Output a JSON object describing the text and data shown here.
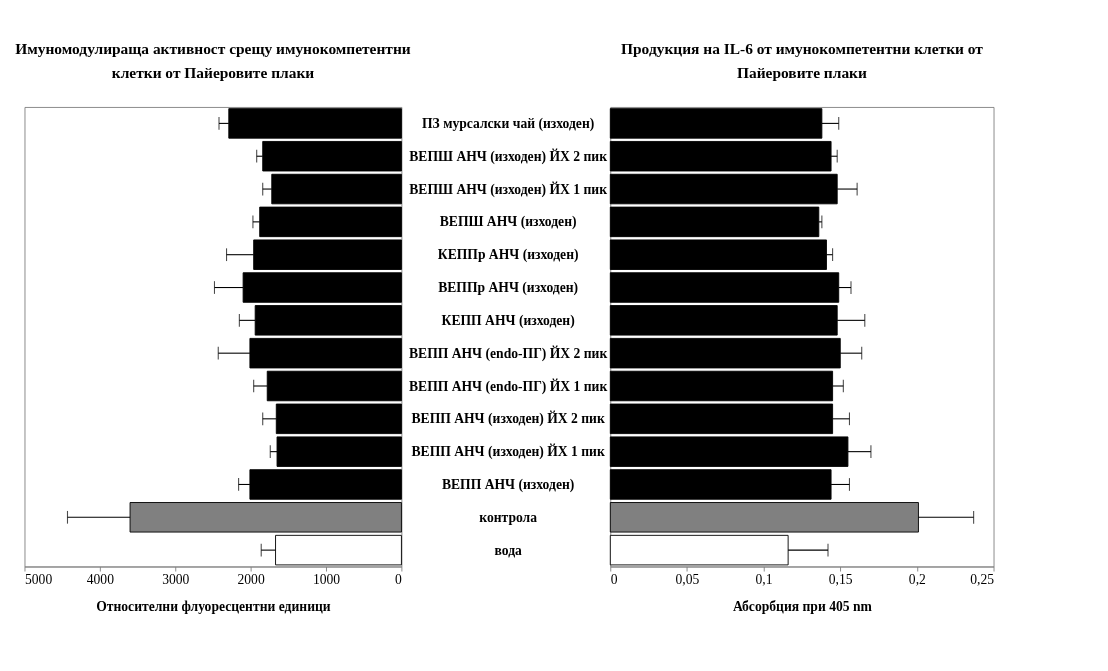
{
  "chart_data": [
    {
      "type": "bar",
      "orientation": "horizontal",
      "title": "Имуномодулираща активност срещу имунокомпетентни\nклетки от Пайеровите плаки",
      "xlabel": "Относителни флуоресцентни единици",
      "categories": [
        "ПЗ мурсалски чай (изходен)",
        "ВЕПШ АНЧ (изходен) ЙХ 2 пик",
        "ВЕПШ АНЧ (изходен) ЙХ 1 пик",
        "ВЕПШ АНЧ (изходен)",
        "КЕППр АНЧ (изходен)",
        "ВЕППр АНЧ (изходен)",
        "КЕПП АНЧ (изходен)",
        "ВЕПП АНЧ (endo-ПГ) ЙХ 2 пик",
        "ВЕПП АНЧ (endo-ПГ) ЙХ 1 пик",
        "ВЕПП АНЧ (изходен) ЙХ 2 пик",
        "ВЕПП АНЧ (изходен) ЙХ 1 пик",
        "ВЕПП АНЧ (изходен)",
        "контрола",
        "вода"
      ],
      "values": [
        2290,
        1840,
        1720,
        1880,
        1960,
        2100,
        1940,
        2010,
        1780,
        1660,
        1650,
        2010,
        3600,
        1670
      ],
      "errors": [
        [
          2290,
          2420
        ],
        [
          1840,
          1920
        ],
        [
          1720,
          1840
        ],
        [
          1880,
          1970
        ],
        [
          1960,
          2320
        ],
        [
          2100,
          2480
        ],
        [
          1940,
          2150
        ],
        [
          2010,
          2430
        ],
        [
          1780,
          1960
        ],
        [
          1660,
          1840
        ],
        [
          1650,
          1740
        ],
        [
          2010,
          2160
        ],
        [
          3600,
          4430
        ],
        [
          1670,
          1860
        ]
      ],
      "colors": [
        "#000000",
        "#000000",
        "#000000",
        "#000000",
        "#000000",
        "#000000",
        "#000000",
        "#000000",
        "#000000",
        "#000000",
        "#000000",
        "#000000",
        "#808080",
        "#ffffff"
      ],
      "xlim": [
        5000,
        0
      ],
      "xticks": [
        5000,
        4000,
        3000,
        2000,
        1000,
        0
      ]
    },
    {
      "type": "bar",
      "orientation": "horizontal",
      "title": "Продукция на IL-6 от имунокомпетентни клетки от\nПайеровите плаки",
      "xlabel": "Абсорбция при 405 nm",
      "categories": [
        null,
        null,
        null,
        null,
        null,
        null,
        null,
        null,
        null,
        null,
        null,
        null,
        null,
        null
      ],
      "values": [
        0.138,
        0.144,
        0.148,
        0.136,
        0.141,
        0.149,
        0.148,
        0.15,
        0.145,
        0.145,
        0.155,
        0.144,
        0.201,
        0.116
      ],
      "errors": [
        [
          0.138,
          0.149
        ],
        [
          0.144,
          0.148
        ],
        [
          0.148,
          0.161
        ],
        [
          0.136,
          0.138
        ],
        [
          0.141,
          0.145
        ],
        [
          0.149,
          0.157
        ],
        [
          0.148,
          0.166
        ],
        [
          0.15,
          0.164
        ],
        [
          0.145,
          0.152
        ],
        [
          0.145,
          0.156
        ],
        [
          0.155,
          0.17
        ],
        [
          0.144,
          0.156
        ],
        [
          0.201,
          0.237
        ],
        [
          0.116,
          0.142
        ]
      ],
      "colors": [
        "#000000",
        "#000000",
        "#000000",
        "#000000",
        "#000000",
        "#000000",
        "#000000",
        "#000000",
        "#000000",
        "#000000",
        "#000000",
        "#000000",
        "#808080",
        "#ffffff"
      ],
      "xlim": [
        0,
        0.25
      ],
      "xticks": [
        0,
        {
          "value": 0.05,
          "label": "0,05"
        },
        {
          "value": 0.1,
          "label": "0,1"
        },
        {
          "value": 0.15,
          "label": "0,15"
        },
        {
          "value": 0.2,
          "label": "0,2"
        },
        {
          "value": 0.25,
          "label": "0,25"
        }
      ]
    }
  ]
}
